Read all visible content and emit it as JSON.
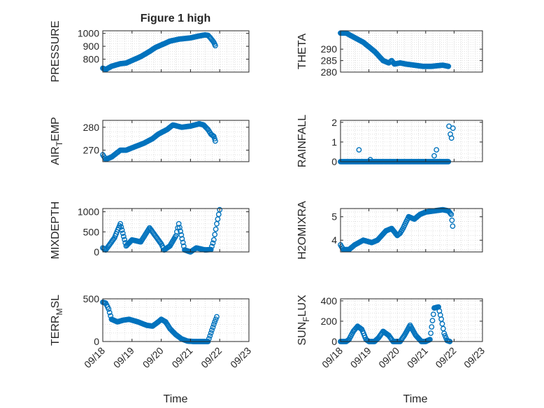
{
  "figure": {
    "title": "Figure 1 high",
    "xlabel": "Time",
    "x_ticks": [
      "09/18",
      "09/19",
      "09/20",
      "09/21",
      "09/22",
      "09/23"
    ],
    "marker_color": "#0072BD",
    "grid_color": "#d9d9d9",
    "axis_color": "#262626"
  },
  "chart_data": [
    {
      "type": "scatter",
      "marker": "circle",
      "column": "left",
      "ylabel": "PRESSURE",
      "ylabel_sub": "",
      "ylabel_rest": "",
      "xlim": [
        0,
        5
      ],
      "ylim": [
        700,
        1020
      ],
      "yticks": [
        800,
        900,
        1000
      ],
      "show_xticks": false,
      "show_xlabel": false,
      "anchors": [
        [
          0,
          730
        ],
        [
          0.05,
          725
        ],
        [
          0.1,
          720
        ],
        [
          0.3,
          745
        ],
        [
          0.6,
          765
        ],
        [
          0.8,
          770
        ],
        [
          1.0,
          790
        ],
        [
          1.3,
          820
        ],
        [
          1.6,
          860
        ],
        [
          1.8,
          890
        ],
        [
          2.0,
          910
        ],
        [
          2.3,
          940
        ],
        [
          2.6,
          955
        ],
        [
          3.0,
          965
        ],
        [
          3.3,
          980
        ],
        [
          3.5,
          988
        ],
        [
          3.6,
          985
        ],
        [
          3.7,
          960
        ],
        [
          3.8,
          930
        ],
        [
          3.85,
          905
        ]
      ],
      "series": [
        {
          "name": "PRESSURE",
          "x": [],
          "y": []
        }
      ]
    },
    {
      "type": "scatter",
      "marker": "circle",
      "column": "right",
      "ylabel": "THETA",
      "ylabel_sub": "",
      "ylabel_rest": "",
      "xlim": [
        0,
        5
      ],
      "ylim": [
        280,
        298
      ],
      "yticks": [
        280,
        285,
        290
      ],
      "show_xticks": false,
      "show_xlabel": false,
      "anchors": [
        [
          0,
          297
        ],
        [
          0.2,
          297
        ],
        [
          0.5,
          295
        ],
        [
          0.8,
          293
        ],
        [
          1.0,
          291
        ],
        [
          1.2,
          289
        ],
        [
          1.5,
          285
        ],
        [
          1.7,
          284
        ],
        [
          1.8,
          285
        ],
        [
          1.9,
          283.5
        ],
        [
          2.1,
          284
        ],
        [
          2.3,
          283.5
        ],
        [
          2.6,
          283
        ],
        [
          2.9,
          282.5
        ],
        [
          3.2,
          282.5
        ],
        [
          3.6,
          283
        ],
        [
          3.8,
          282.5
        ]
      ],
      "series": [
        {
          "name": "THETA",
          "x": [],
          "y": []
        }
      ]
    },
    {
      "type": "scatter",
      "marker": "circle",
      "column": "left",
      "ylabel": "AIR",
      "ylabel_sub": "T",
      "ylabel_rest": "EMP",
      "xlim": [
        0,
        5
      ],
      "ylim": [
        265,
        283
      ],
      "yticks": [
        270,
        280
      ],
      "show_xticks": false,
      "show_xlabel": false,
      "anchors": [
        [
          0,
          268
        ],
        [
          0.1,
          266
        ],
        [
          0.3,
          267
        ],
        [
          0.6,
          270
        ],
        [
          0.8,
          270
        ],
        [
          1.0,
          271
        ],
        [
          1.4,
          273
        ],
        [
          1.7,
          275
        ],
        [
          1.9,
          277
        ],
        [
          2.2,
          279
        ],
        [
          2.4,
          281
        ],
        [
          2.7,
          280
        ],
        [
          3.0,
          280.5
        ],
        [
          3.3,
          281.5
        ],
        [
          3.45,
          281
        ],
        [
          3.6,
          279
        ],
        [
          3.7,
          277
        ],
        [
          3.8,
          276
        ],
        [
          3.85,
          274
        ]
      ],
      "series": [
        {
          "name": "AIR_TEMP",
          "x": [],
          "y": []
        }
      ]
    },
    {
      "type": "scatter",
      "marker": "circle",
      "column": "right",
      "ylabel": "RAINFALL",
      "ylabel_sub": "",
      "ylabel_rest": "",
      "xlim": [
        0,
        5
      ],
      "ylim": [
        0,
        2.1
      ],
      "yticks": [
        0,
        1,
        2
      ],
      "show_xticks": false,
      "show_xlabel": false,
      "anchors": [
        [
          0,
          0
        ],
        [
          3.8,
          0
        ]
      ],
      "extra_points": [
        [
          0.65,
          0.6
        ],
        [
          1.05,
          0.1
        ],
        [
          3.3,
          0.3
        ],
        [
          3.38,
          0.6
        ],
        [
          3.82,
          1.8
        ],
        [
          3.87,
          1.4
        ],
        [
          3.91,
          1.2
        ],
        [
          3.96,
          1.7
        ]
      ],
      "series": [
        {
          "name": "RAINFALL",
          "x": [],
          "y": []
        }
      ]
    },
    {
      "type": "scatter",
      "marker": "circle",
      "column": "left",
      "ylabel": "MIXDEPTH",
      "ylabel_sub": "",
      "ylabel_rest": "",
      "xlim": [
        0,
        5
      ],
      "ylim": [
        0,
        1080
      ],
      "yticks": [
        0,
        500,
        1000
      ],
      "show_xticks": false,
      "show_xlabel": false,
      "anchors": [
        [
          0,
          100
        ],
        [
          0.1,
          50
        ],
        [
          0.2,
          150
        ],
        [
          0.4,
          350
        ],
        [
          0.6,
          700
        ],
        [
          0.8,
          150
        ],
        [
          1.0,
          300
        ],
        [
          1.3,
          250
        ],
        [
          1.6,
          600
        ],
        [
          1.8,
          400
        ],
        [
          2.0,
          200
        ],
        [
          2.1,
          50
        ],
        [
          2.3,
          150
        ],
        [
          2.5,
          400
        ],
        [
          2.6,
          700
        ],
        [
          2.8,
          50
        ],
        [
          3.0,
          0
        ],
        [
          3.2,
          100
        ],
        [
          3.5,
          50
        ],
        [
          3.7,
          60
        ],
        [
          3.8,
          300
        ],
        [
          3.9,
          700
        ],
        [
          4.0,
          1050
        ]
      ],
      "series": [
        {
          "name": "MIXDEPTH",
          "x": [],
          "y": []
        }
      ]
    },
    {
      "type": "scatter",
      "marker": "circle",
      "column": "right",
      "ylabel": "H2OMIXRA",
      "ylabel_sub": "",
      "ylabel_rest": "",
      "xlim": [
        0,
        5
      ],
      "ylim": [
        3.5,
        5.35
      ],
      "yticks": [
        4,
        5
      ],
      "show_xticks": false,
      "show_xlabel": false,
      "anchors": [
        [
          0,
          3.8
        ],
        [
          0.1,
          3.6
        ],
        [
          0.3,
          3.6
        ],
        [
          0.5,
          3.8
        ],
        [
          0.8,
          4.0
        ],
        [
          1.1,
          3.9
        ],
        [
          1.3,
          4.0
        ],
        [
          1.6,
          4.4
        ],
        [
          1.8,
          4.5
        ],
        [
          2.0,
          4.2
        ],
        [
          2.1,
          4.3
        ],
        [
          2.2,
          4.5
        ],
        [
          2.4,
          5.0
        ],
        [
          2.6,
          4.9
        ],
        [
          2.8,
          5.1
        ],
        [
          3.0,
          5.2
        ],
        [
          3.3,
          5.25
        ],
        [
          3.6,
          5.3
        ],
        [
          3.8,
          5.25
        ],
        [
          3.9,
          5.1
        ],
        [
          3.95,
          4.6
        ]
      ],
      "series": [
        {
          "name": "H2OMIXRA",
          "x": [],
          "y": []
        }
      ]
    },
    {
      "type": "scatter",
      "marker": "circle",
      "column": "left",
      "ylabel": "TERR",
      "ylabel_sub": "M",
      "ylabel_rest": "SL",
      "xlim": [
        0,
        5
      ],
      "ylim": [
        0,
        500
      ],
      "yticks": [
        0,
        500
      ],
      "show_xticks": true,
      "show_xlabel": true,
      "anchors": [
        [
          0,
          460
        ],
        [
          0.1,
          450
        ],
        [
          0.2,
          380
        ],
        [
          0.3,
          260
        ],
        [
          0.5,
          230
        ],
        [
          0.7,
          250
        ],
        [
          0.9,
          260
        ],
        [
          1.2,
          230
        ],
        [
          1.5,
          190
        ],
        [
          1.7,
          180
        ],
        [
          1.9,
          230
        ],
        [
          2.0,
          260
        ],
        [
          2.15,
          230
        ],
        [
          2.3,
          150
        ],
        [
          2.5,
          80
        ],
        [
          2.7,
          30
        ],
        [
          2.9,
          5
        ],
        [
          3.1,
          0
        ],
        [
          3.4,
          0
        ],
        [
          3.6,
          0
        ],
        [
          3.7,
          100
        ],
        [
          3.8,
          200
        ],
        [
          3.9,
          290
        ]
      ],
      "series": [
        {
          "name": "TERR_MSL",
          "x": [],
          "y": []
        }
      ]
    },
    {
      "type": "scatter",
      "marker": "circle",
      "column": "right",
      "ylabel": "SUN",
      "ylabel_sub": "F",
      "ylabel_rest": "LUX",
      "xlim": [
        0,
        5
      ],
      "ylim": [
        0,
        420
      ],
      "yticks": [
        0,
        200,
        400
      ],
      "show_xticks": true,
      "show_xlabel": true,
      "anchors": [
        [
          0,
          0
        ],
        [
          0.2,
          0
        ],
        [
          0.3,
          20
        ],
        [
          0.45,
          100
        ],
        [
          0.6,
          150
        ],
        [
          0.75,
          120
        ],
        [
          0.9,
          20
        ],
        [
          1.0,
          0
        ],
        [
          1.2,
          0
        ],
        [
          1.35,
          40
        ],
        [
          1.5,
          100
        ],
        [
          1.7,
          60
        ],
        [
          1.85,
          0
        ],
        [
          2.1,
          0
        ],
        [
          2.25,
          60
        ],
        [
          2.45,
          160
        ],
        [
          2.65,
          60
        ],
        [
          2.85,
          0
        ],
        [
          3.0,
          0
        ],
        [
          3.15,
          20
        ],
        [
          3.3,
          330
        ],
        [
          3.45,
          340
        ],
        [
          3.55,
          220
        ],
        [
          3.65,
          80
        ],
        [
          3.75,
          10
        ],
        [
          3.85,
          0
        ]
      ],
      "series": [
        {
          "name": "SUN_FLUX",
          "x": [],
          "y": []
        }
      ]
    }
  ]
}
